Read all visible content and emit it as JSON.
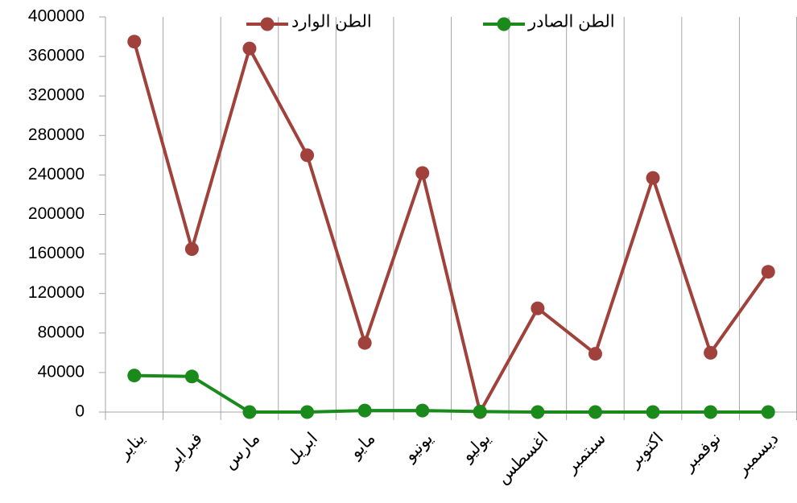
{
  "chart_data": {
    "type": "line",
    "categories": [
      "يناير",
      "فبراير",
      "مارس",
      "ابريل",
      "مايو",
      "يونيو",
      "يوليو",
      "اغسطس",
      "سبتمبر",
      "اكتوبر",
      "نوفمبر",
      "ديسمبر"
    ],
    "series": [
      {
        "name": "الطن الوارد",
        "color": "#a0413c",
        "values": [
          375000,
          165000,
          368000,
          260000,
          70000,
          242000,
          0,
          105000,
          59000,
          237000,
          60000,
          142000
        ]
      },
      {
        "name": "الطن الصادر",
        "color": "#1a8a1a",
        "values": [
          37000,
          36000,
          0,
          0,
          1500,
          1500,
          500,
          0,
          0,
          0,
          0,
          0
        ]
      }
    ],
    "ylim": [
      0,
      400000
    ],
    "yticks": [
      0,
      40000,
      80000,
      120000,
      160000,
      200000,
      240000,
      280000,
      320000,
      360000,
      400000
    ],
    "grid": "x",
    "legend": "top"
  }
}
